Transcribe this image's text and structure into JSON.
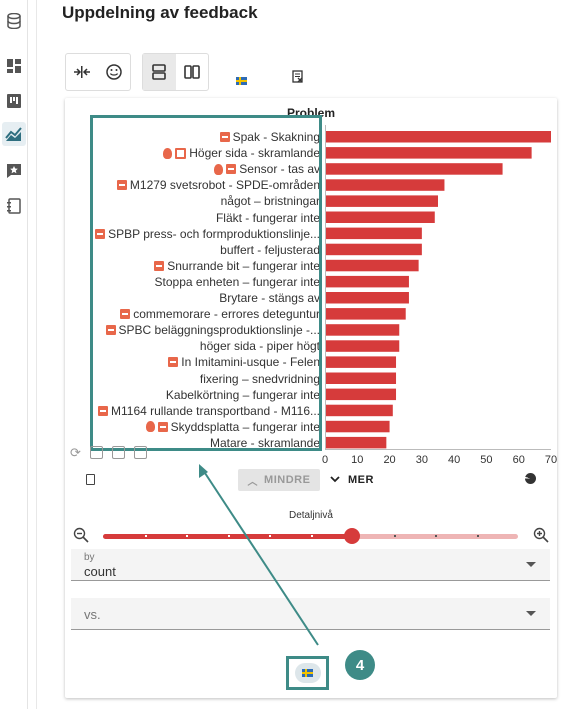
{
  "page": {
    "title": "Uppdelning av feedback"
  },
  "rail": {
    "items": [
      {
        "icon": "database-icon"
      },
      {
        "icon": "dashboard-icon"
      },
      {
        "icon": "board-icon"
      },
      {
        "icon": "chart-icon"
      },
      {
        "icon": "feedback-icon"
      },
      {
        "icon": "notebook-icon"
      }
    ]
  },
  "toolbar": {
    "icons": [
      "compress-icon",
      "smiley-icon",
      "rows-layout-icon",
      "columns-layout-icon",
      "swedish-flag-icon",
      "excel-export-icon"
    ]
  },
  "chart_data": {
    "type": "bar",
    "orientation": "horizontal",
    "title": "Problem",
    "categories": [
      "Spak - Skakning",
      "Höger sida - skramlande",
      "Sensor - tas av",
      "M1279 svetsrobot - SPDE-områden",
      "något – bristningar",
      "Fläkt - fungerar inte",
      "SPBP press- och formproduktionslinje...",
      "buffert - feljusterad",
      "Snurrande bit – fungerar inte",
      "Stoppa enheten – fungerar inte",
      "Brytare - stängs av",
      "commemorare - errores deteguntur",
      "SPBC beläggningsproduktionslinje -...",
      "höger sida - piper högt",
      "In Imitamini-usque - Felen",
      "fixering – snedvridning",
      "Kabelkörtning – fungerar inte",
      "M1164 rullande transportband - M116...",
      "Skyddsplatta – fungerar inte",
      "Matare - skramlande"
    ],
    "values": [
      70,
      64,
      55,
      37,
      35,
      34,
      30,
      30,
      29,
      26,
      26,
      25,
      23,
      23,
      22,
      22,
      22,
      21,
      20,
      19
    ],
    "xticks": [
      "0",
      "10",
      "20",
      "30",
      "40",
      "50",
      "60",
      "70"
    ],
    "xlim": [
      0,
      70
    ],
    "bar_color": "#d63b3b",
    "icons": [
      [
        "tag"
      ],
      [
        "bulb",
        "cal"
      ],
      [
        "bulb",
        "tag"
      ],
      [
        "tag"
      ],
      [],
      [],
      [
        "tag"
      ],
      [],
      [
        "tag"
      ],
      [],
      [],
      [
        "tag"
      ],
      [
        "tag"
      ],
      [],
      [
        "tag"
      ],
      [],
      [],
      [
        "tag"
      ],
      [
        "bulb",
        "tag"
      ],
      []
    ]
  },
  "controls": {
    "less_label": "MINDRE",
    "more_label": "MER",
    "detail_label": "Detaljnivå",
    "detail_level": 0.6
  },
  "by_field": {
    "label": "by",
    "value": "count"
  },
  "vs_field": {
    "placeholder": "vs."
  },
  "annotation": {
    "number": "4"
  }
}
